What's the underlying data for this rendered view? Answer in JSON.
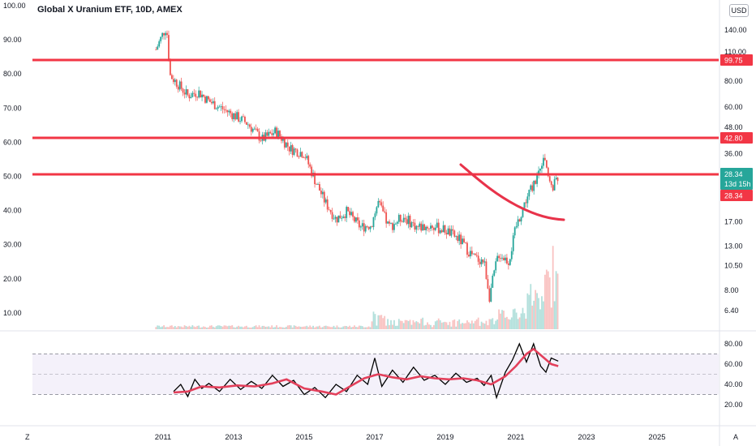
{
  "header": {
    "title": "Global X Uranium ETF, 10D, AMEX",
    "currency": "USD"
  },
  "footer": {
    "left_badge": "Z",
    "right_badge": "A"
  },
  "colors": {
    "up": "#26a69a",
    "down": "#ef5350",
    "level_line": "#f23645",
    "ma_line": "#e8334a",
    "rsi_line": "#000000",
    "rsi_ma": "#e3405b",
    "rsi_band": "#ede7f6",
    "price_tag": "#26a69a"
  },
  "chart_data": {
    "type": "line",
    "title": "Global X Uranium ETF, 10D, AMEX",
    "price_panel": {
      "left_axis_ticks": [
        "100.00",
        "90.00",
        "80.00",
        "70.00",
        "60.00",
        "50.00",
        "40.00",
        "30.00",
        "20.00",
        "10.00"
      ],
      "right_axis_ticks": [
        "140.00",
        "110.00",
        "80.00",
        "60.00",
        "48.00",
        "36.00",
        "17.00",
        "13.00",
        "10.50",
        "8.00",
        "6.40"
      ],
      "scale": "log",
      "series": [
        {
          "x": [
            2010.8,
            2011.0,
            2011.1,
            2011.2,
            2011.4,
            2011.7,
            2012.0,
            2012.3,
            2012.6,
            2013.0,
            2013.4,
            2013.8,
            2014.2,
            2014.6,
            2015.0,
            2015.3,
            2015.6,
            2015.9,
            2016.2,
            2016.6,
            2016.9,
            2017.1,
            2017.4,
            2017.8,
            2018.2,
            2018.6,
            2019.0,
            2019.4,
            2019.8,
            2020.1,
            2020.25,
            2020.5,
            2020.8,
            2021.0,
            2021.3,
            2021.6,
            2021.8,
            2022.0,
            2022.2
          ],
          "y": [
            113,
            135,
            145,
            85,
            78,
            68,
            71,
            64,
            60,
            55,
            50,
            42,
            46,
            38,
            36,
            27,
            21,
            17.5,
            19,
            16,
            16.5,
            21,
            16,
            18,
            16,
            16.2,
            15.5,
            14,
            11.5,
            11,
            7.5,
            12,
            11,
            16,
            22,
            28,
            36,
            24,
            28
          ]
        }
      ]
    },
    "horizontal_levels": [
      {
        "label": "99.75",
        "value": 99.75
      },
      {
        "label": "42.80",
        "value": 42.8
      },
      {
        "label": "28.34",
        "value": 28.34
      }
    ],
    "last_price": {
      "value": "28.34",
      "countdown": "13d 15h"
    },
    "x_axis_ticks": [
      "2011",
      "2013",
      "2015",
      "2017",
      "2019",
      "2021",
      "2023",
      "2025"
    ],
    "rsi_panel": {
      "ticks": [
        "80.00",
        "60.00",
        "40.00",
        "20.00"
      ],
      "band": [
        30,
        70
      ],
      "midline": 50,
      "rsi": {
        "x": [
          2011.3,
          2011.5,
          2011.7,
          2011.9,
          2012.1,
          2012.3,
          2012.6,
          2012.9,
          2013.2,
          2013.5,
          2013.8,
          2014.1,
          2014.4,
          2014.7,
          2015.0,
          2015.3,
          2015.6,
          2015.9,
          2016.2,
          2016.5,
          2016.8,
          2017.0,
          2017.2,
          2017.5,
          2017.8,
          2018.1,
          2018.4,
          2018.7,
          2019.0,
          2019.3,
          2019.6,
          2019.9,
          2020.1,
          2020.3,
          2020.45,
          2020.7,
          2020.9,
          2021.1,
          2021.3,
          2021.5,
          2021.7,
          2021.85,
          2022.0,
          2022.2
        ],
        "y": [
          33,
          40,
          28,
          45,
          36,
          41,
          33,
          45,
          35,
          43,
          36,
          49,
          38,
          44,
          30,
          37,
          27,
          40,
          33,
          49,
          40,
          66,
          38,
          54,
          42,
          57,
          44,
          49,
          40,
          51,
          42,
          46,
          39,
          49,
          27,
          52,
          64,
          80,
          62,
          80,
          58,
          52,
          66,
          63
        ]
      },
      "rsi_ma": {
        "x": [
          2011.3,
          2011.7,
          2012.1,
          2012.6,
          2013.1,
          2013.6,
          2014.1,
          2014.5,
          2015.0,
          2015.5,
          2015.9,
          2016.3,
          2016.7,
          2017.1,
          2017.5,
          2017.9,
          2018.3,
          2018.7,
          2019.1,
          2019.5,
          2019.9,
          2020.3,
          2020.7,
          2021.0,
          2021.3,
          2021.5,
          2021.8,
          2022.0,
          2022.2
        ],
        "y": [
          32,
          33,
          38,
          37,
          39,
          38,
          41,
          45,
          36,
          33,
          30,
          38,
          46,
          50,
          47,
          45,
          48,
          46,
          45,
          46,
          44,
          40,
          48,
          58,
          70,
          75,
          66,
          60,
          58
        ]
      }
    }
  }
}
